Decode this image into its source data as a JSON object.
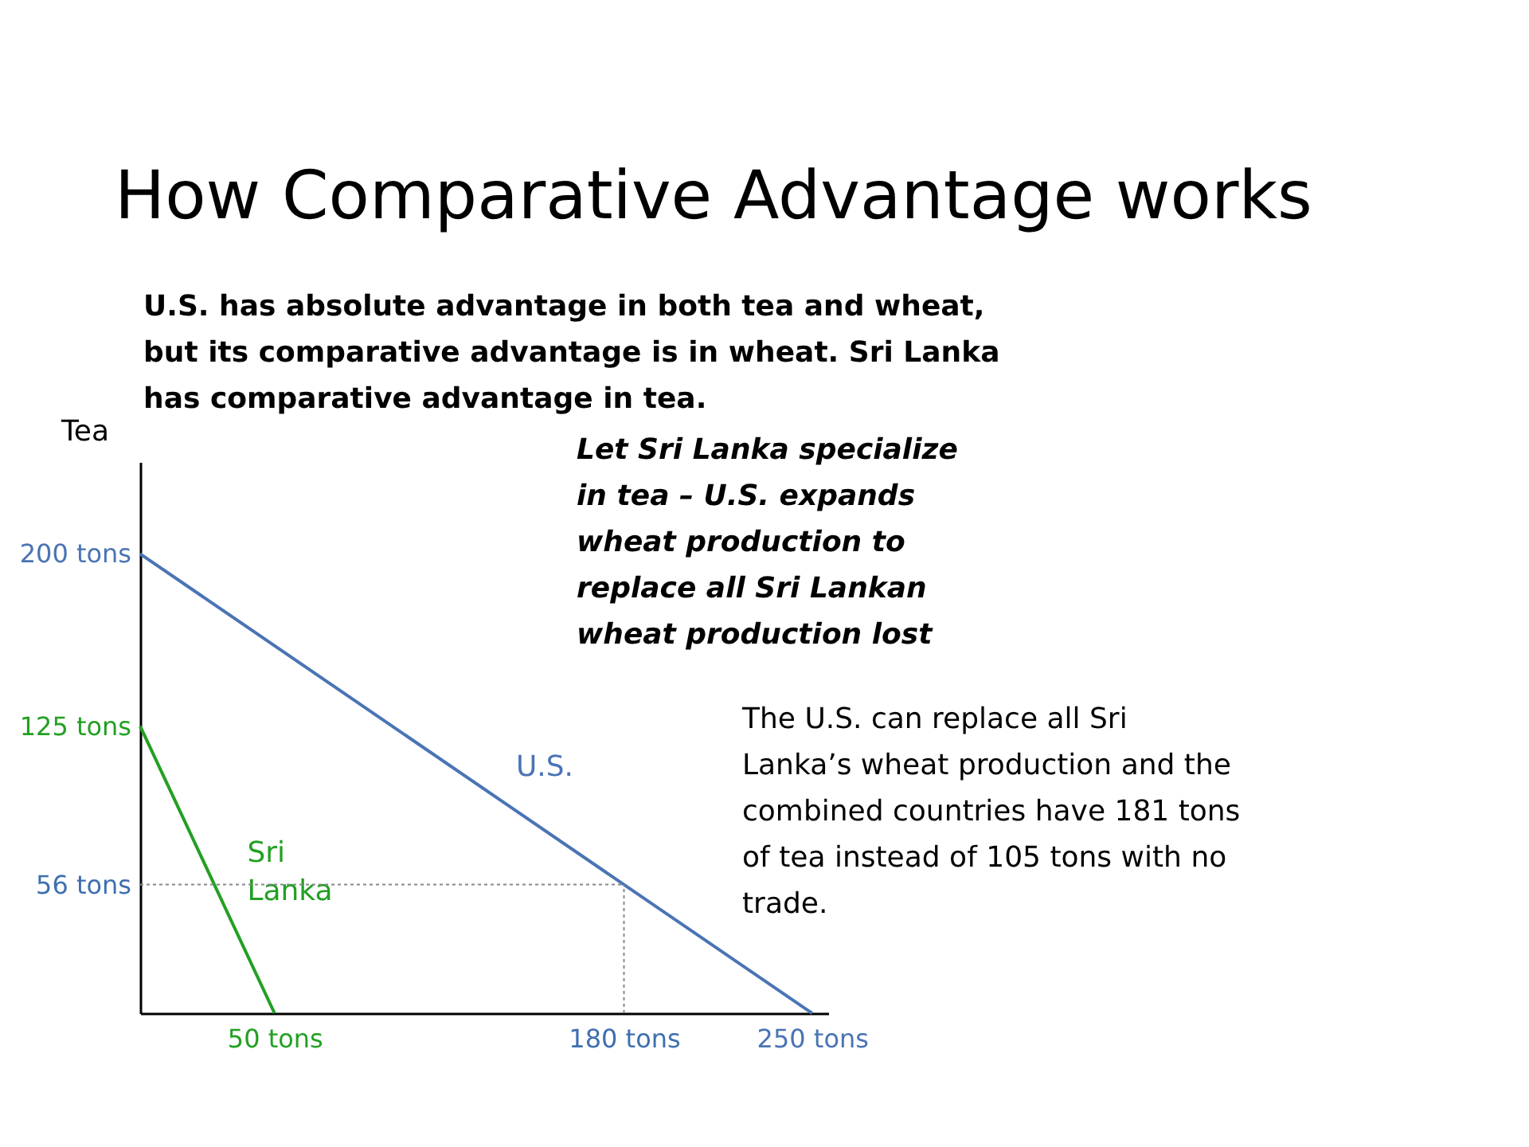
{
  "chart_data": {
    "type": "line",
    "title": "How Comparative Advantage works",
    "subtitle": "U.S. has absolute advantage in both tea and wheat, but its comparative advantage is in wheat. Sri Lanka has comparative advantage in tea.",
    "ylabel": "Tea",
    "series": [
      {
        "name": "U.S.",
        "color": "#4a74b4",
        "x": [
          0,
          250
        ],
        "values": [
          200,
          0
        ]
      },
      {
        "name": "Sri Lanka",
        "color": "#22a022",
        "x": [
          0,
          50
        ],
        "values": [
          125,
          0
        ]
      }
    ],
    "xlim": [
      0,
      256
    ],
    "ylim": [
      0,
      240
    ],
    "grid": false,
    "xticks": [
      {
        "value": 50,
        "label": "50 tons"
      },
      {
        "value": 180,
        "label": "180 tons"
      },
      {
        "value": 250,
        "label": "250 tons"
      }
    ],
    "yticks": [
      {
        "value": 56,
        "label": "56 tons"
      },
      {
        "value": 125,
        "label": "125 tons"
      },
      {
        "value": 200,
        "label": "200 tons"
      }
    ],
    "legend": false,
    "marker": "none",
    "line_style": "solid",
    "ref_lines": [
      {
        "axis": "y",
        "value": 56,
        "line_style": "dotted",
        "color": "#888888"
      },
      {
        "axis": "x",
        "value": 180,
        "line_style": "dotted",
        "color": "#888888"
      }
    ],
    "annotations": [
      "Let Sri Lanka specialize in tea – U.S. expands wheat production to replace all Sri Lankan wheat production lost",
      "The U.S. can replace all Sri Lanka’s wheat production and the combined countries have 181 tons of tea instead of 105 tons with no trade."
    ]
  }
}
